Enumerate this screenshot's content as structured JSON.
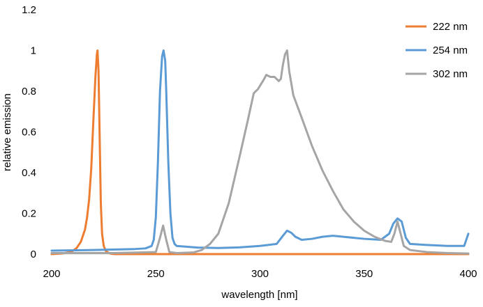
{
  "chart_data": {
    "type": "line",
    "xlabel": "wavelength [nm]",
    "ylabel": "relative emission",
    "xlim": [
      200,
      400
    ],
    "ylim": [
      0,
      1.2
    ],
    "x_ticks": [
      200,
      250,
      300,
      350,
      400
    ],
    "y_ticks": [
      0,
      0.2,
      0.4,
      0.6,
      0.8,
      1,
      1.2
    ],
    "grid": false,
    "legend_position": "top-right",
    "series": [
      {
        "name": "222 nm",
        "color": "#ed7d31",
        "points": [
          [
            200,
            0
          ],
          [
            205,
            0.003
          ],
          [
            208,
            0.008
          ],
          [
            210,
            0.015
          ],
          [
            212,
            0.03
          ],
          [
            214,
            0.06
          ],
          [
            216,
            0.12
          ],
          [
            217,
            0.18
          ],
          [
            218,
            0.27
          ],
          [
            219,
            0.42
          ],
          [
            220,
            0.65
          ],
          [
            221,
            0.87
          ],
          [
            221.7,
            0.98
          ],
          [
            222,
            1.0
          ],
          [
            222.5,
            0.9
          ],
          [
            223,
            0.6
          ],
          [
            223.6,
            0.25
          ],
          [
            224.2,
            0.1
          ],
          [
            225,
            0.04
          ],
          [
            226,
            0.015
          ],
          [
            228,
            0.003
          ],
          [
            230,
            0
          ],
          [
            260,
            0
          ],
          [
            300,
            0
          ],
          [
            350,
            0
          ],
          [
            400,
            0
          ]
        ]
      },
      {
        "name": "254 nm",
        "color": "#5b9bd5",
        "points": [
          [
            200,
            0.017
          ],
          [
            220,
            0.02
          ],
          [
            240,
            0.025
          ],
          [
            245,
            0.028
          ],
          [
            248,
            0.04
          ],
          [
            249,
            0.07
          ],
          [
            250,
            0.18
          ],
          [
            251,
            0.45
          ],
          [
            252,
            0.8
          ],
          [
            253,
            0.97
          ],
          [
            253.7,
            1.0
          ],
          [
            254.5,
            0.95
          ],
          [
            255,
            0.8
          ],
          [
            256,
            0.45
          ],
          [
            257,
            0.2
          ],
          [
            258,
            0.08
          ],
          [
            259,
            0.05
          ],
          [
            260,
            0.04
          ],
          [
            270,
            0.032
          ],
          [
            280,
            0.03
          ],
          [
            290,
            0.033
          ],
          [
            300,
            0.04
          ],
          [
            308,
            0.05
          ],
          [
            311,
            0.09
          ],
          [
            313,
            0.115
          ],
          [
            315,
            0.105
          ],
          [
            317,
            0.085
          ],
          [
            320,
            0.07
          ],
          [
            325,
            0.075
          ],
          [
            330,
            0.085
          ],
          [
            335,
            0.09
          ],
          [
            340,
            0.085
          ],
          [
            350,
            0.075
          ],
          [
            358,
            0.07
          ],
          [
            362,
            0.1
          ],
          [
            364,
            0.15
          ],
          [
            366,
            0.175
          ],
          [
            368,
            0.16
          ],
          [
            370,
            0.08
          ],
          [
            372,
            0.05
          ],
          [
            380,
            0.045
          ],
          [
            390,
            0.04
          ],
          [
            398,
            0.04
          ],
          [
            400,
            0.1
          ]
        ]
      },
      {
        "name": "302 nm",
        "color": "#a5a5a5",
        "points": [
          [
            200,
            0.005
          ],
          [
            230,
            0.005
          ],
          [
            250,
            0.01
          ],
          [
            252,
            0.08
          ],
          [
            253.5,
            0.14
          ],
          [
            255,
            0.07
          ],
          [
            256.5,
            0.01
          ],
          [
            260,
            0.005
          ],
          [
            268,
            0.008
          ],
          [
            272,
            0.02
          ],
          [
            276,
            0.05
          ],
          [
            280,
            0.1
          ],
          [
            285,
            0.25
          ],
          [
            290,
            0.47
          ],
          [
            294,
            0.65
          ],
          [
            297,
            0.79
          ],
          [
            299,
            0.81
          ],
          [
            302,
            0.86
          ],
          [
            303,
            0.88
          ],
          [
            305,
            0.87
          ],
          [
            307,
            0.87
          ],
          [
            309,
            0.85
          ],
          [
            310,
            0.86
          ],
          [
            311,
            0.93
          ],
          [
            312,
            0.98
          ],
          [
            313,
            1.0
          ],
          [
            314,
            0.9
          ],
          [
            316,
            0.78
          ],
          [
            320,
            0.67
          ],
          [
            325,
            0.53
          ],
          [
            330,
            0.41
          ],
          [
            335,
            0.31
          ],
          [
            340,
            0.22
          ],
          [
            345,
            0.16
          ],
          [
            350,
            0.115
          ],
          [
            355,
            0.085
          ],
          [
            360,
            0.065
          ],
          [
            363,
            0.06
          ],
          [
            364.5,
            0.1
          ],
          [
            366,
            0.16
          ],
          [
            367.5,
            0.1
          ],
          [
            369,
            0.04
          ],
          [
            372,
            0.02
          ],
          [
            380,
            0.01
          ],
          [
            390,
            0.005
          ],
          [
            400,
            0.003
          ]
        ]
      }
    ]
  }
}
